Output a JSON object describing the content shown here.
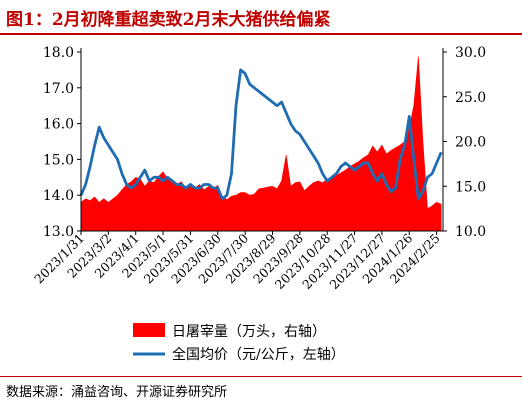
{
  "header": {
    "title": "图1：2月初降重超卖致2月末大猪供给偏紧"
  },
  "footer": {
    "source": "数据来源：涌益咨询、开源证券研究所"
  },
  "colors": {
    "red": "#ff0000",
    "blue": "#1f6cb3",
    "brand": "#c00000"
  },
  "chart_data": {
    "type": "area+line",
    "title": "",
    "left_axis": {
      "ylim": [
        13.0,
        18.0
      ],
      "ticks": [
        "13.0",
        "14.0",
        "15.0",
        "16.0",
        "17.0",
        "18.0"
      ]
    },
    "right_axis": {
      "ylim": [
        10.0,
        30.0
      ],
      "ticks": [
        "10.0",
        "15.0",
        "20.0",
        "25.0",
        "30.0"
      ]
    },
    "x_tick_labels": [
      "2023/1/31",
      "2023/3/2",
      "2023/4/1",
      "2023/5/1",
      "2023/5/31",
      "2023/6/30",
      "2023/7/30",
      "2023/8/29",
      "2023/9/28",
      "2023/10/28",
      "2023/11/27",
      "2023/12/27",
      "2024/1/26",
      "2024/2/25"
    ],
    "legend": [
      "日屠宰量（万头，右轴）",
      "全国均价（元/公斤，左轴）"
    ],
    "series": [
      {
        "name": "日屠宰量（万头，右轴）",
        "axis": "right",
        "kind": "area",
        "x": [
          "2023/1/31",
          "2023/2/5",
          "2023/2/10",
          "2023/2/15",
          "2023/2/20",
          "2023/2/25",
          "2023/3/2",
          "2023/3/7",
          "2023/3/12",
          "2023/3/17",
          "2023/3/22",
          "2023/3/27",
          "2023/4/1",
          "2023/4/6",
          "2023/4/11",
          "2023/4/16",
          "2023/4/21",
          "2023/4/26",
          "2023/5/1",
          "2023/5/6",
          "2023/5/11",
          "2023/5/16",
          "2023/5/21",
          "2023/5/26",
          "2023/5/31",
          "2023/6/5",
          "2023/6/10",
          "2023/6/15",
          "2023/6/20",
          "2023/6/25",
          "2023/6/30",
          "2023/7/5",
          "2023/7/10",
          "2023/7/15",
          "2023/7/20",
          "2023/7/25",
          "2023/7/30",
          "2023/8/4",
          "2023/8/9",
          "2023/8/14",
          "2023/8/19",
          "2023/8/24",
          "2023/8/29",
          "2023/9/3",
          "2023/9/8",
          "2023/9/13",
          "2023/9/18",
          "2023/9/23",
          "2023/9/28",
          "2023/10/3",
          "2023/10/8",
          "2023/10/13",
          "2023/10/18",
          "2023/10/23",
          "2023/10/28",
          "2023/11/2",
          "2023/11/7",
          "2023/11/12",
          "2023/11/17",
          "2023/11/22",
          "2023/11/27",
          "2023/12/2",
          "2023/12/7",
          "2023/12/12",
          "2023/12/17",
          "2023/12/22",
          "2023/12/27",
          "2024/1/1",
          "2024/1/6",
          "2024/1/11",
          "2024/1/16",
          "2024/1/21",
          "2024/1/26",
          "2024/1/31",
          "2024/2/5",
          "2024/2/10",
          "2024/2/15",
          "2024/2/20",
          "2024/2/25",
          "2024/3/1"
        ],
        "values": [
          13.2,
          13.6,
          13.4,
          13.8,
          13.2,
          13.6,
          13.2,
          13.6,
          14.0,
          14.6,
          15.2,
          15.5,
          16.0,
          15.8,
          15.0,
          15.6,
          15.4,
          16.1,
          16.6,
          15.8,
          15.4,
          15.2,
          15.5,
          14.8,
          15.0,
          14.8,
          15.2,
          14.6,
          15.0,
          14.7,
          15.1,
          13.9,
          13.5,
          13.9,
          14.0,
          14.3,
          14.3,
          14.0,
          14.1,
          14.7,
          14.8,
          14.9,
          15.0,
          14.7,
          15.6,
          18.5,
          15.0,
          15.4,
          15.5,
          14.5,
          15.0,
          15.4,
          15.6,
          15.4,
          15.8,
          16.0,
          16.2,
          16.5,
          16.8,
          17.2,
          17.5,
          17.8,
          18.2,
          18.5,
          19.5,
          18.8,
          19.6,
          18.6,
          19.0,
          19.3,
          19.6,
          20.0,
          21.5,
          24.0,
          29.5,
          20.0,
          12.5,
          12.8,
          13.2,
          13.0
        ]
      },
      {
        "name": "全国均价（元/公斤，左轴）",
        "axis": "left",
        "kind": "line",
        "x": [
          "2023/1/31",
          "2023/2/5",
          "2023/2/10",
          "2023/2/15",
          "2023/2/20",
          "2023/2/25",
          "2023/3/2",
          "2023/3/7",
          "2023/3/12",
          "2023/3/17",
          "2023/3/22",
          "2023/3/27",
          "2023/4/1",
          "2023/4/6",
          "2023/4/11",
          "2023/4/16",
          "2023/4/21",
          "2023/4/26",
          "2023/5/1",
          "2023/5/6",
          "2023/5/11",
          "2023/5/16",
          "2023/5/21",
          "2023/5/26",
          "2023/5/31",
          "2023/6/5",
          "2023/6/10",
          "2023/6/15",
          "2023/6/20",
          "2023/6/25",
          "2023/6/30",
          "2023/7/5",
          "2023/7/10",
          "2023/7/15",
          "2023/7/20",
          "2023/7/25",
          "2023/7/30",
          "2023/8/4",
          "2023/8/9",
          "2023/8/14",
          "2023/8/19",
          "2023/8/24",
          "2023/8/29",
          "2023/9/3",
          "2023/9/8",
          "2023/9/13",
          "2023/9/18",
          "2023/9/23",
          "2023/9/28",
          "2023/10/3",
          "2023/10/8",
          "2023/10/13",
          "2023/10/18",
          "2023/10/23",
          "2023/10/28",
          "2023/11/2",
          "2023/11/7",
          "2023/11/12",
          "2023/11/17",
          "2023/11/22",
          "2023/11/27",
          "2023/12/2",
          "2023/12/7",
          "2023/12/12",
          "2023/12/17",
          "2023/12/22",
          "2023/12/27",
          "2024/1/1",
          "2024/1/6",
          "2024/1/11",
          "2024/1/16",
          "2024/1/21",
          "2024/1/26",
          "2024/1/31",
          "2024/2/5",
          "2024/2/10",
          "2024/2/15",
          "2024/2/20",
          "2024/2/25",
          "2024/3/1"
        ],
        "values": [
          14.0,
          14.3,
          14.8,
          15.4,
          15.9,
          15.6,
          15.4,
          15.2,
          15.0,
          14.6,
          14.3,
          14.2,
          14.3,
          14.5,
          14.7,
          14.4,
          14.5,
          14.5,
          14.4,
          14.5,
          14.4,
          14.3,
          14.3,
          14.2,
          14.3,
          14.2,
          14.2,
          14.3,
          14.3,
          14.2,
          14.2,
          13.9,
          14.0,
          14.6,
          16.5,
          17.5,
          17.4,
          17.1,
          17.0,
          16.9,
          16.8,
          16.7,
          16.6,
          16.5,
          16.6,
          16.3,
          16.0,
          15.8,
          15.7,
          15.5,
          15.3,
          15.1,
          14.9,
          14.6,
          14.4,
          14.5,
          14.6,
          14.8,
          14.9,
          14.8,
          14.7,
          14.8,
          14.9,
          14.9,
          14.6,
          14.4,
          14.6,
          14.3,
          14.1,
          14.2,
          15.0,
          15.4,
          16.2,
          15.0,
          13.9,
          14.1,
          14.5,
          14.6,
          14.9,
          15.2
        ]
      }
    ]
  }
}
